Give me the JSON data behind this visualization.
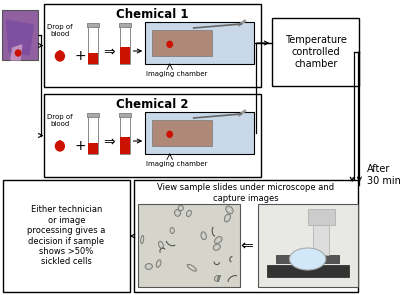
{
  "bg_color": "#ffffff",
  "box1_title": "Chemical 1",
  "box2_title": "Chemical 2",
  "box1_sub": "Drop of\nblood",
  "box2_sub": "Drop of\nblood",
  "imaging_label": "Imaging chamber",
  "temp_box_text": "Temperature\ncontrolled\nchamber",
  "after_text": "After\n30 min",
  "view_text": "View sample slides under microscope and\ncapture images",
  "decision_text": "Either technician\nor image\nprocessing gives a\ndecision if sample\nshows >50%\nsickled cells",
  "border_color": "#000000",
  "text_color": "#000000",
  "red_color": "#cc1100",
  "light_blue": "#c8d8e8",
  "brown_slide": "#b08878",
  "tube_gray": "#cccccc",
  "photo_bg": "#9060a0"
}
